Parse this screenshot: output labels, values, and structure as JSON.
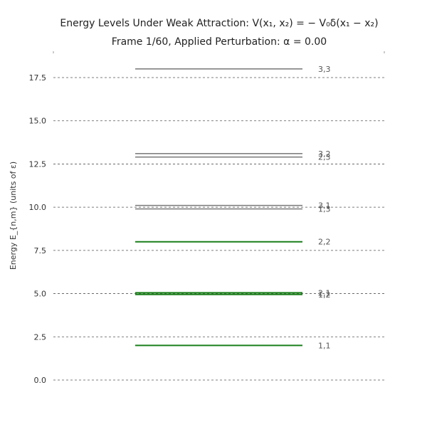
{
  "chart_data": {
    "type": "line",
    "title_line1": "Energy Levels Under Weak Attraction:  V(x₁, x₂) = − V₀δ(x₁ − x₂)",
    "title_line2": "Frame 1/60, Applied Perturbation: α = 0.00",
    "xlabel": "",
    "ylabel": "Energy E_{n,m} (units of ε)",
    "ylim": [
      0,
      18.5
    ],
    "yticks": [
      0.0,
      2.5,
      5.0,
      7.5,
      10.0,
      12.5,
      15.0,
      17.5
    ],
    "ytick_labels": [
      "0.0",
      "2.5",
      "5.0",
      "7.5",
      "10.0",
      "12.5",
      "15.0",
      "17.5"
    ],
    "grid": "horizontal dashed",
    "colors": {
      "highlight": "#1a7f1a",
      "other": "#808080"
    },
    "levels": [
      {
        "label": "1,1",
        "energy": 2.0,
        "highlight": true
      },
      {
        "label": "1,2",
        "energy": 4.95,
        "highlight": true
      },
      {
        "label": "2,1",
        "energy": 5.05,
        "highlight": true
      },
      {
        "label": "2,2",
        "energy": 8.0,
        "highlight": true
      },
      {
        "label": "1,3",
        "energy": 9.9,
        "highlight": false
      },
      {
        "label": "3,1",
        "energy": 10.1,
        "highlight": false
      },
      {
        "label": "2,3",
        "energy": 12.9,
        "highlight": false
      },
      {
        "label": "3,2",
        "energy": 13.1,
        "highlight": false
      },
      {
        "label": "3,3",
        "energy": 18.0,
        "highlight": false
      }
    ]
  }
}
